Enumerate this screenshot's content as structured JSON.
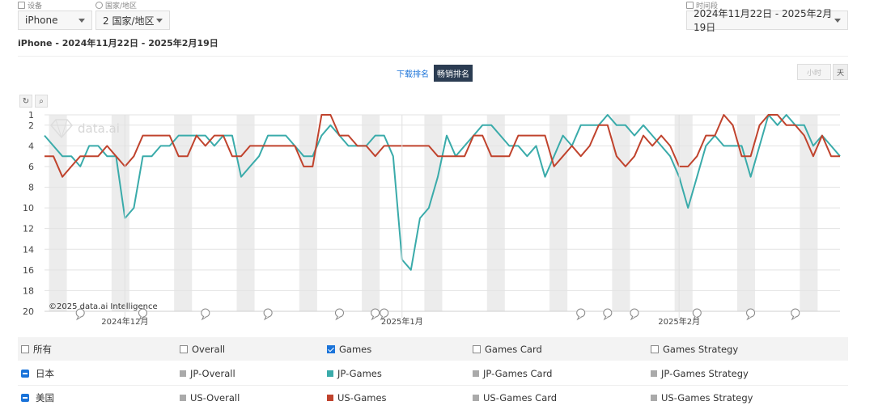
{
  "filters": {
    "device_label": "设备",
    "device_value": "iPhone",
    "country_label": "国家/地区",
    "country_value": "2 国家/地区",
    "period_label": "时间段",
    "period_value": "2024年11月22日 - 2025年2月19日"
  },
  "subtitle": "iPhone - 2024年11月22日 - 2025年2月19日",
  "rank_toggle": {
    "download": "下载排名",
    "grossing": "畅销排名",
    "active": "grossing"
  },
  "granularity": {
    "hourly": "小时",
    "daily": "天",
    "active": "daily"
  },
  "watermark": "data.ai",
  "copyright": "©2025 data.ai Intelligence",
  "colors": {
    "jp_games": "#3aabaa",
    "us_games": "#c0432d",
    "inactive": "#aaaaaa",
    "accent": "#1a73d9",
    "weekend_band": "#ececec"
  },
  "chart_data": {
    "type": "line",
    "title": "",
    "xlabel": "",
    "ylabel": "",
    "y_inverted": true,
    "ylim": [
      1,
      20
    ],
    "y_ticks": [
      1,
      2,
      4,
      6,
      8,
      10,
      12,
      14,
      16,
      18,
      20
    ],
    "x_start": "2024-11-22",
    "x_end": "2025-02-19",
    "x_tick_labels": [
      {
        "label": "2024年12月",
        "date": "2024-12-01"
      },
      {
        "label": "2025年1月",
        "date": "2025-01-01"
      },
      {
        "label": "2025年2月",
        "date": "2025-02-01"
      }
    ],
    "weekend_bands": [
      "2024-11-23",
      "2024-11-30",
      "2024-12-07",
      "2024-12-14",
      "2024-12-21",
      "2024-12-28",
      "2025-01-04",
      "2025-01-11",
      "2025-01-18",
      "2025-01-25",
      "2025-02-01",
      "2025-02-08",
      "2025-02-15"
    ],
    "event_markers": [
      "2024-11-26",
      "2024-12-03",
      "2024-12-10",
      "2024-12-17",
      "2024-12-25",
      "2024-12-29",
      "2024-12-30",
      "2025-01-21",
      "2025-01-24",
      "2025-01-27",
      "2025-02-03",
      "2025-02-09",
      "2025-02-14"
    ],
    "series": [
      {
        "name": "JP-Games",
        "color": "#3aabaa",
        "values": [
          3,
          4,
          5,
          5,
          6,
          4,
          4,
          5,
          5,
          11,
          10,
          5,
          5,
          4,
          4,
          3,
          3,
          3,
          3,
          4,
          3,
          3,
          7,
          6,
          5,
          3,
          3,
          3,
          4,
          5,
          5,
          3,
          2,
          3,
          4,
          4,
          4,
          3,
          3,
          5,
          15,
          16,
          11,
          10,
          7,
          3,
          5,
          4,
          3,
          2,
          2,
          3,
          4,
          4,
          5,
          4,
          7,
          5,
          3,
          4,
          2,
          2,
          2,
          1,
          2,
          2,
          3,
          2,
          3,
          4,
          5,
          7,
          10,
          7,
          4,
          3,
          4,
          4,
          4,
          7,
          4,
          1,
          2,
          1,
          2,
          2,
          4,
          3,
          4,
          5
        ]
      },
      {
        "name": "US-Games",
        "color": "#c0432d",
        "values": [
          5,
          5,
          7,
          6,
          5,
          5,
          5,
          4,
          5,
          6,
          5,
          3,
          3,
          3,
          3,
          5,
          5,
          3,
          4,
          3,
          3,
          5,
          5,
          4,
          4,
          4,
          4,
          4,
          4,
          6,
          6,
          1,
          1,
          3,
          3,
          4,
          4,
          5,
          4,
          4,
          4,
          4,
          4,
          4,
          5,
          5,
          5,
          5,
          3,
          3,
          5,
          5,
          5,
          3,
          3,
          3,
          3,
          6,
          5,
          4,
          5,
          4,
          2,
          2,
          5,
          6,
          5,
          3,
          4,
          3,
          4,
          6,
          6,
          5,
          3,
          3,
          1,
          2,
          5,
          5,
          2,
          1,
          1,
          2,
          2,
          3,
          5,
          3,
          5,
          5
        ]
      }
    ]
  },
  "legend": {
    "headers": [
      "所有",
      "Overall",
      "Games",
      "Games Card",
      "Games Strategy"
    ],
    "header_checked": [
      false,
      false,
      true,
      false,
      false
    ],
    "rows": [
      {
        "country": "日本",
        "items": [
          "JP-Overall",
          "JP-Games",
          "JP-Games Card",
          "JP-Games Strategy"
        ],
        "colors": [
          "#aaaaaa",
          "#3aabaa",
          "#aaaaaa",
          "#aaaaaa"
        ]
      },
      {
        "country": "美国",
        "items": [
          "US-Overall",
          "US-Games",
          "US-Games Card",
          "US-Games Strategy"
        ],
        "colors": [
          "#aaaaaa",
          "#c0432d",
          "#aaaaaa",
          "#aaaaaa"
        ]
      }
    ]
  }
}
